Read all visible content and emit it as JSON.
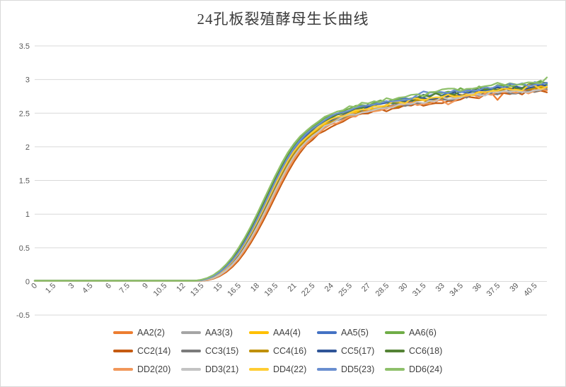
{
  "chart_data": {
    "type": "line",
    "title": "24孔板裂殖酵母生长曲线",
    "x_axis": {
      "labels": [
        "0",
        "1.5",
        "3",
        "4.5",
        "6",
        "7.5",
        "9",
        "10.5",
        "12",
        "13.5",
        "15",
        "16.5",
        "18",
        "19.5",
        "21",
        "22.5",
        "24",
        "25.5",
        "27",
        "28.5",
        "30",
        "31.5",
        "33",
        "34.5",
        "36",
        "37.5",
        "39",
        "40.5"
      ],
      "min": 0,
      "max": 41.5,
      "tick_interval": 1.5,
      "data_step": 0.5
    },
    "y_axis": {
      "labels": [
        "3.5",
        "3",
        "2.5",
        "2",
        "1.5",
        "1",
        "0.5",
        "0",
        "-0.5"
      ],
      "min": -0.5,
      "max": 3.5,
      "step": 0.5
    },
    "grid": "horizontal",
    "grid_color": "#d9d9d9",
    "axis_label_color": "#595959",
    "legend_position": "bottom",
    "base_curve": {
      "x_start": 0,
      "x_step": 0.5,
      "values": [
        0.01,
        0.01,
        0.01,
        0.01,
        0.01,
        0.01,
        0.01,
        0.01,
        0.01,
        0.01,
        0.01,
        0.01,
        0.01,
        0.01,
        0.01,
        0.01,
        0.01,
        0.01,
        0.01,
        0.01,
        0.01,
        0.01,
        0.01,
        0.01,
        0.01,
        0.01,
        0.01,
        0.01,
        0.03,
        0.06,
        0.11,
        0.18,
        0.27,
        0.38,
        0.52,
        0.67,
        0.84,
        1.02,
        1.21,
        1.4,
        1.58,
        1.75,
        1.9,
        2.02,
        2.12,
        2.2,
        2.27,
        2.33,
        2.38,
        2.42,
        2.46,
        2.49,
        2.52,
        2.54,
        2.56,
        2.58,
        2.6,
        2.61,
        2.63,
        2.64,
        2.66,
        2.67,
        2.69,
        2.7,
        2.71,
        2.73,
        2.74,
        2.75,
        2.76,
        2.77,
        2.78,
        2.79,
        2.8,
        2.81,
        2.82,
        2.83,
        2.84,
        2.85,
        2.85,
        2.86,
        2.87,
        2.88,
        2.88,
        2.89
      ]
    },
    "series": [
      {
        "name": "AA2(2)",
        "color": "#ED7D31",
        "x_shift": -0.15,
        "y_offset": -0.02
      },
      {
        "name": "AA3(3)",
        "color": "#A5A5A5",
        "x_shift": 0.0,
        "y_offset": -0.01
      },
      {
        "name": "AA4(4)",
        "color": "#FFC000",
        "x_shift": 0.05,
        "y_offset": 0.0
      },
      {
        "name": "AA5(5)",
        "color": "#4472C4",
        "x_shift": 0.1,
        "y_offset": 0.05
      },
      {
        "name": "AA6(6)",
        "color": "#70AD47",
        "x_shift": 0.3,
        "y_offset": 0.06
      },
      {
        "name": "CC2(14)",
        "color": "#C55A11",
        "x_shift": -0.3,
        "y_offset": -0.05
      },
      {
        "name": "CC3(15)",
        "color": "#7B7B7B",
        "x_shift": -0.05,
        "y_offset": -0.03
      },
      {
        "name": "CC4(16)",
        "color": "#BF9000",
        "x_shift": 0.0,
        "y_offset": -0.02
      },
      {
        "name": "CC5(17)",
        "color": "#2F5597",
        "x_shift": 0.05,
        "y_offset": 0.02
      },
      {
        "name": "CC6(18)",
        "color": "#548235",
        "x_shift": 0.25,
        "y_offset": 0.04
      },
      {
        "name": "DD2(20)",
        "color": "#F1975A",
        "x_shift": -0.2,
        "y_offset": -0.04
      },
      {
        "name": "DD3(21)",
        "color": "#C3C3C3",
        "x_shift": -0.1,
        "y_offset": -0.02
      },
      {
        "name": "DD4(22)",
        "color": "#FFCD33",
        "x_shift": 0.1,
        "y_offset": 0.01
      },
      {
        "name": "DD5(23)",
        "color": "#698ED0",
        "x_shift": 0.15,
        "y_offset": 0.06
      },
      {
        "name": "DD6(24)",
        "color": "#8EC06A",
        "x_shift": 0.35,
        "y_offset": 0.08
      }
    ],
    "noise": {
      "start_x": 21.5,
      "base_amp": 0.008,
      "growth": 0.003,
      "max_amp": 0.038
    },
    "events": [
      {
        "series_index": 0,
        "x": 37.5,
        "delta": -0.12
      },
      {
        "series_index": 10,
        "x": 33.5,
        "delta": -0.1
      },
      {
        "series_index": 13,
        "x": 31.5,
        "delta": 0.06
      },
      {
        "series_index": 14,
        "x": 41.5,
        "delta": 0.06
      }
    ]
  }
}
